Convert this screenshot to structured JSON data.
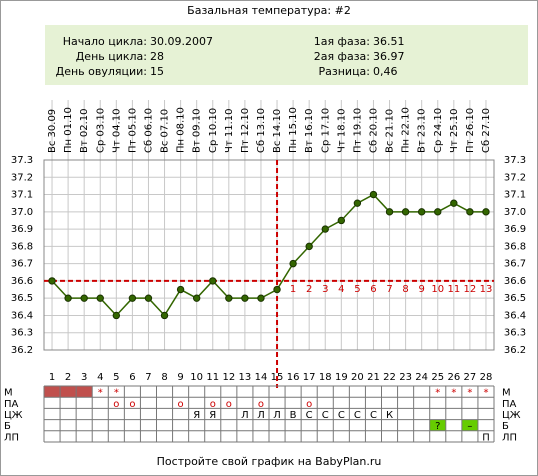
{
  "chart_data": {
    "type": "line",
    "title": "Базальная температура: #2",
    "info_left": [
      {
        "label": "Начало цикла:",
        "value": "30.09.2007"
      },
      {
        "label": "День цикла:",
        "value": 28
      },
      {
        "label": "День овуляции:",
        "value": 15
      }
    ],
    "info_right": [
      {
        "label": "1ая фаза:",
        "value": 36.51
      },
      {
        "label": "2ая фаза:",
        "value": 36.97
      },
      {
        "label": "Разница:",
        "value": "0,46"
      }
    ],
    "x": [
      "Вс 30.09",
      "Пн 01.10",
      "Вт 02.10",
      "Ср 03.10",
      "Чт 04.10",
      "Пт 05.10",
      "Сб 06.10",
      "Вс 07.10",
      "Пн 08.10",
      "Вт 09.10",
      "Ср 10.10",
      "Чт 11.10",
      "Пт 12.10",
      "Сб 13.10",
      "Вс 14.10",
      "Пн 15.10",
      "Вт 16.10",
      "Ср 17.10",
      "Чт 18.10",
      "Пт 19.10",
      "Сб 20.10",
      "Вс 21.10",
      "Пн 22.10",
      "Вт 23.10",
      "Ср 24.10",
      "Чт 25.10",
      "Пт 26.10",
      "Сб 27.10"
    ],
    "day_numbers": [
      1,
      2,
      3,
      4,
      5,
      6,
      7,
      8,
      9,
      10,
      11,
      12,
      13,
      14,
      15,
      16,
      17,
      18,
      19,
      20,
      21,
      22,
      23,
      24,
      25,
      26,
      27,
      28
    ],
    "series": [
      {
        "name": "Температура",
        "color": "#336600",
        "values": [
          36.6,
          36.5,
          36.5,
          36.5,
          36.4,
          36.5,
          36.5,
          36.4,
          36.55,
          36.5,
          36.6,
          36.5,
          36.5,
          36.5,
          36.55,
          36.7,
          36.8,
          36.9,
          36.95,
          37.05,
          37.1,
          37.0,
          37.0,
          37.0,
          37.0,
          37.05,
          37.0,
          37.0
        ]
      }
    ],
    "ylim": [
      36.2,
      37.3
    ],
    "yticks": [
      36.2,
      36.3,
      36.4,
      36.5,
      36.6,
      36.7,
      36.8,
      36.9,
      {
        "value": 37,
        "label": "37.0"
      },
      37.1,
      37.2,
      37.3
    ],
    "grid": true,
    "coverline": 36.6,
    "ovulation_day": 15,
    "marker_color": "#cc0000",
    "phase2_days": [
      1,
      2,
      3,
      4,
      5,
      6,
      7,
      8,
      9,
      10,
      11,
      12,
      13
    ],
    "rows": [
      {
        "label": "М",
        "cells": [
          null,
          null,
          null,
          "*",
          "*",
          null,
          null,
          null,
          null,
          null,
          null,
          null,
          null,
          null,
          null,
          null,
          null,
          null,
          null,
          null,
          null,
          null,
          null,
          null,
          "*",
          "*",
          "*",
          "*"
        ],
        "filled": [
          1,
          2,
          3
        ],
        "fill_color": "#c0504d"
      },
      {
        "label": "ПА",
        "cells": [
          null,
          null,
          null,
          null,
          "o",
          "o",
          null,
          null,
          "o",
          null,
          "o",
          "o",
          null,
          "o",
          null,
          null,
          "o",
          null,
          null,
          null,
          null,
          null,
          null,
          null,
          null,
          null,
          null,
          null
        ]
      },
      {
        "label": "ЦЖ",
        "cells": [
          null,
          null,
          null,
          null,
          null,
          null,
          null,
          null,
          null,
          "Я",
          "Я",
          null,
          "Л",
          "Л",
          "Л",
          "В",
          "С",
          "С",
          "С",
          "С",
          "С",
          "К",
          null,
          null,
          null,
          null,
          null,
          null
        ]
      },
      {
        "label": "Б",
        "cells": [
          null,
          null,
          null,
          null,
          null,
          null,
          null,
          null,
          null,
          null,
          null,
          null,
          null,
          null,
          null,
          null,
          null,
          null,
          null,
          null,
          null,
          null,
          null,
          null,
          "?",
          null,
          "–",
          null
        ],
        "filled": [
          25,
          27
        ],
        "fill_color": "#66cc00"
      },
      {
        "label": "ЛП",
        "cells": [
          null,
          null,
          null,
          null,
          null,
          null,
          null,
          null,
          null,
          null,
          null,
          null,
          null,
          null,
          null,
          null,
          null,
          null,
          null,
          null,
          null,
          null,
          null,
          null,
          null,
          null,
          null,
          "П"
        ]
      }
    ],
    "footer": "Постройте свой график на BabyPlan.ru"
  }
}
